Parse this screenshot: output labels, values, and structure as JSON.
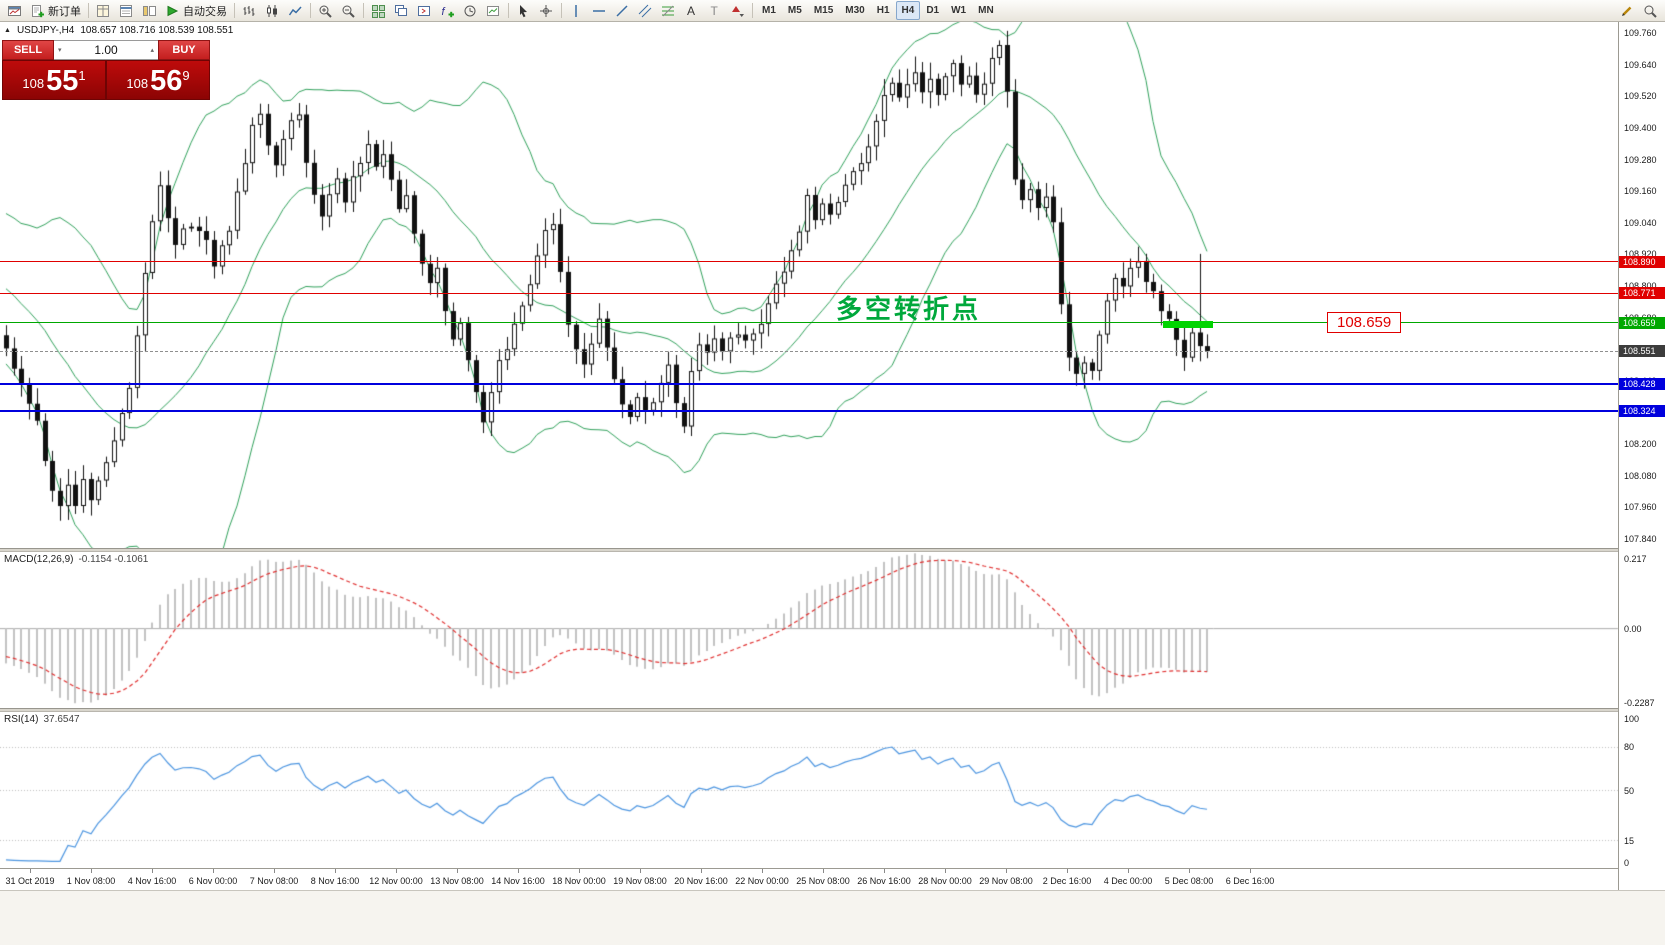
{
  "toolbar": {
    "items": [
      {
        "name": "chart-window",
        "type": "icon",
        "icon": "chart-window-icon"
      },
      {
        "name": "new-order-button",
        "type": "labeled",
        "icon": "new-order-icon",
        "label": "新订单"
      },
      {
        "type": "sep"
      },
      {
        "name": "market-watch",
        "type": "icon",
        "icon": "market-watch-icon"
      },
      {
        "name": "data-window",
        "type": "icon",
        "icon": "data-window-icon"
      },
      {
        "name": "navigator",
        "type": "icon",
        "icon": "navigator-icon"
      },
      {
        "name": "autotrade-button",
        "type": "labeled",
        "icon": "autotrade-play-icon",
        "label": "自动交易"
      },
      {
        "type": "sep"
      },
      {
        "name": "bar-chart",
        "type": "icon",
        "icon": "bar-chart-icon"
      },
      {
        "name": "candlestick-chart",
        "type": "icon",
        "icon": "candlestick-chart-icon"
      },
      {
        "name": "line-chart",
        "type": "icon",
        "icon": "line-chart-icon"
      },
      {
        "type": "sep"
      },
      {
        "name": "zoom-in",
        "type": "icon",
        "icon": "zoom-in-icon"
      },
      {
        "name": "zoom-out",
        "type": "icon",
        "icon": "zoom-out-icon"
      },
      {
        "type": "sep"
      },
      {
        "name": "tile-windows",
        "type": "icon",
        "icon": "tile-windows-icon"
      },
      {
        "name": "cascade-windows",
        "type": "icon",
        "icon": "cascade-windows-icon"
      },
      {
        "name": "arrange-windows",
        "type": "icon",
        "icon": "arrange-windows-icon"
      },
      {
        "name": "indicators",
        "type": "icon",
        "icon": "indicators-icon"
      },
      {
        "name": "periods",
        "type": "icon",
        "icon": "periods-icon"
      },
      {
        "name": "templates",
        "type": "icon",
        "icon": "templates-icon"
      },
      {
        "type": "sep"
      },
      {
        "name": "cursor",
        "type": "icon",
        "icon": "cursor-icon"
      },
      {
        "name": "crosshair",
        "type": "icon",
        "icon": "crosshair-icon"
      },
      {
        "type": "sep"
      },
      {
        "name": "vertical-line",
        "type": "icon",
        "icon": "vertical-line-icon"
      },
      {
        "name": "horizontal-line",
        "type": "icon",
        "icon": "horizontal-line-icon"
      },
      {
        "name": "trendline",
        "type": "icon",
        "icon": "trendline-icon"
      },
      {
        "name": "equidistant-channel",
        "type": "icon",
        "icon": "equidistant-channel-icon"
      },
      {
        "name": "fibonacci",
        "type": "icon",
        "icon": "fibonacci-icon"
      },
      {
        "name": "text-tool",
        "type": "icon",
        "icon": "text-icon"
      },
      {
        "name": "label-tool",
        "type": "icon",
        "icon": "label-icon"
      },
      {
        "name": "arrows-tool",
        "type": "icon",
        "icon": "arrows-icon"
      },
      {
        "type": "sep"
      }
    ],
    "timeframes": [
      "M1",
      "M5",
      "M15",
      "M30",
      "H1",
      "H4",
      "D1",
      "W1",
      "MN"
    ],
    "active_timeframe": "H4",
    "right_items": [
      {
        "name": "pencil-tool",
        "type": "icon",
        "icon": "pencil-icon"
      },
      {
        "name": "quick-search",
        "type": "icon",
        "icon": "search-icon"
      }
    ]
  },
  "chart_header": {
    "collapse_icon": "▲",
    "title": "USDJPY-,H4",
    "ohlc": "108.657 108.716 108.539 108.551"
  },
  "trade_panel": {
    "sell_label": "SELL",
    "buy_label": "BUY",
    "volume": "1.00",
    "vol_down_icon": "▾",
    "vol_up_icon": "▴",
    "sell_price": {
      "prefix": "108",
      "big": "55",
      "pip": "1"
    },
    "buy_price": {
      "prefix": "108",
      "big": "56",
      "pip": "9"
    }
  },
  "annotations": {
    "turning_point_text": {
      "text": "多空转折点",
      "color": "#00A83C"
    },
    "price_callout": {
      "text": "108.659",
      "color": "#DD0000"
    },
    "highlight_bar": {
      "color": "#00D400",
      "price": 108.659
    }
  },
  "levels": [
    {
      "label": "108.890",
      "price": 108.89,
      "color": "#E00000",
      "thickness": 1
    },
    {
      "label": "108.771",
      "price": 108.771,
      "color": "#E00000",
      "thickness": 1
    },
    {
      "label": "108.659",
      "price": 108.659,
      "color": "#00A800",
      "thickness": 1
    },
    {
      "label": "108.428",
      "price": 108.428,
      "color": "#0000DD",
      "thickness": 2
    },
    {
      "label": "108.324",
      "price": 108.324,
      "color": "#0000DD",
      "thickness": 2
    }
  ],
  "current_price": {
    "label": "108.551",
    "price": 108.551,
    "tag_color": "#3C3C3C"
  },
  "axis": {
    "max": 109.8,
    "min": 107.8,
    "ticks": [
      "109.760",
      "109.640",
      "109.520",
      "109.400",
      "109.280",
      "109.160",
      "109.040",
      "108.920",
      "108.800",
      "108.680",
      "108.560",
      "108.440",
      "108.320",
      "108.200",
      "108.080",
      "107.960",
      "107.840"
    ]
  },
  "macd": {
    "label": "MACD(12,26,9)",
    "values": "-0.1154 -0.1061",
    "ticks": [
      {
        "label": "0.217",
        "value": 0.217
      },
      {
        "label": "0.00",
        "value": 0
      },
      {
        "label": "-0.2287",
        "value": -0.2287
      }
    ],
    "histogram_color": "#C2C2C2",
    "signal_color": "#E03030"
  },
  "rsi": {
    "label": "RSI(14)",
    "value": "37.6547",
    "ticks": [
      {
        "label": "100",
        "value": 100
      },
      {
        "label": "80",
        "value": 80
      },
      {
        "label": "50",
        "value": 50
      },
      {
        "label": "15",
        "value": 15
      },
      {
        "label": "0",
        "value": 0
      }
    ],
    "level_lines": [
      80,
      50,
      15
    ],
    "line_color": "#4C95E0"
  },
  "time_axis": {
    "labels": [
      "31 Oct 2019",
      "1 Nov 08:00",
      "4 Nov 16:00",
      "6 Nov 00:00",
      "7 Nov 08:00",
      "8 Nov 16:00",
      "12 Nov 00:00",
      "13 Nov 08:00",
      "14 Nov 16:00",
      "18 Nov 00:00",
      "19 Nov 08:00",
      "20 Nov 16:00",
      "22 Nov 00:00",
      "25 Nov 08:00",
      "26 Nov 16:00",
      "28 Nov 00:00",
      "29 Nov 08:00",
      "2 Dec 16:00",
      "4 Dec 00:00",
      "5 Dec 08:00",
      "6 Dec 16:00"
    ]
  },
  "chart_data": {
    "type": "candlestick",
    "symbol": "USDJPY",
    "timeframe": "H4",
    "visible_range": {
      "price_min": 107.8,
      "price_max": 109.8,
      "time_start": "31 Oct 2019",
      "time_end": "6 Dec 16:00"
    },
    "candle_count": 157,
    "last_close": 108.551,
    "up_color": "#FFFFFF",
    "down_color": "#111111",
    "wick_color": "#111111",
    "overlays": {
      "bollinger_bands": {
        "period": 20,
        "deviation": 2,
        "color": "#2FA05A"
      }
    },
    "price_path": [
      [
        0,
        108.55
      ],
      [
        2,
        108.44
      ],
      [
        4,
        108.28
      ],
      [
        5,
        108.15
      ],
      [
        6,
        108.02
      ],
      [
        7,
        107.96
      ],
      [
        8,
        108.04
      ],
      [
        9,
        107.95
      ],
      [
        10,
        108.05
      ],
      [
        11,
        107.97
      ],
      [
        12,
        108.06
      ],
      [
        13,
        108.12
      ],
      [
        14,
        108.22
      ],
      [
        16,
        108.42
      ],
      [
        17,
        108.6
      ],
      [
        18,
        108.85
      ],
      [
        19,
        109.06
      ],
      [
        20,
        109.17
      ],
      [
        21,
        109.07
      ],
      [
        22,
        108.96
      ],
      [
        24,
        109.04
      ],
      [
        26,
        108.96
      ],
      [
        27,
        108.88
      ],
      [
        29,
        109.0
      ],
      [
        31,
        109.28
      ],
      [
        32,
        109.42
      ],
      [
        33,
        109.46
      ],
      [
        34,
        109.33
      ],
      [
        35,
        109.26
      ],
      [
        36,
        109.34
      ],
      [
        37,
        109.43
      ],
      [
        38,
        109.45
      ],
      [
        39,
        109.27
      ],
      [
        40,
        109.16
      ],
      [
        41,
        109.07
      ],
      [
        42,
        109.14
      ],
      [
        43,
        109.22
      ],
      [
        44,
        109.12
      ],
      [
        45,
        109.2
      ],
      [
        46,
        109.28
      ],
      [
        47,
        109.33
      ],
      [
        48,
        109.24
      ],
      [
        49,
        109.3
      ],
      [
        50,
        109.2
      ],
      [
        51,
        109.1
      ],
      [
        52,
        109.15
      ],
      [
        53,
        108.98
      ],
      [
        54,
        108.9
      ],
      [
        55,
        108.8
      ],
      [
        56,
        108.86
      ],
      [
        57,
        108.7
      ],
      [
        58,
        108.6
      ],
      [
        59,
        108.66
      ],
      [
        60,
        108.5
      ],
      [
        61,
        108.4
      ],
      [
        62,
        108.28
      ],
      [
        63,
        108.4
      ],
      [
        64,
        108.5
      ],
      [
        65,
        108.56
      ],
      [
        66,
        108.66
      ],
      [
        67,
        108.72
      ],
      [
        68,
        108.8
      ],
      [
        69,
        108.9
      ],
      [
        70,
        109.0
      ],
      [
        71,
        109.04
      ],
      [
        72,
        108.84
      ],
      [
        73,
        108.64
      ],
      [
        74,
        108.55
      ],
      [
        75,
        108.5
      ],
      [
        76,
        108.58
      ],
      [
        77,
        108.68
      ],
      [
        78,
        108.58
      ],
      [
        79,
        108.45
      ],
      [
        80,
        108.35
      ],
      [
        81,
        108.3
      ],
      [
        82,
        108.37
      ],
      [
        83,
        108.31
      ],
      [
        84,
        108.35
      ],
      [
        85,
        108.43
      ],
      [
        86,
        108.5
      ],
      [
        87,
        108.36
      ],
      [
        88,
        108.28
      ],
      [
        89,
        108.48
      ],
      [
        90,
        108.58
      ],
      [
        91,
        108.54
      ],
      [
        92,
        108.6
      ],
      [
        93,
        108.56
      ],
      [
        94,
        108.61
      ],
      [
        95,
        108.63
      ],
      [
        96,
        108.58
      ],
      [
        97,
        108.63
      ],
      [
        98,
        108.67
      ],
      [
        99,
        108.73
      ],
      [
        100,
        108.79
      ],
      [
        101,
        108.86
      ],
      [
        102,
        108.93
      ],
      [
        103,
        109.01
      ],
      [
        104,
        109.13
      ],
      [
        105,
        109.04
      ],
      [
        106,
        109.1
      ],
      [
        107,
        109.07
      ],
      [
        108,
        109.12
      ],
      [
        109,
        109.18
      ],
      [
        110,
        109.23
      ],
      [
        111,
        109.28
      ],
      [
        112,
        109.33
      ],
      [
        113,
        109.41
      ],
      [
        114,
        109.51
      ],
      [
        115,
        109.58
      ],
      [
        116,
        109.5
      ],
      [
        117,
        109.55
      ],
      [
        118,
        109.61
      ],
      [
        119,
        109.55
      ],
      [
        120,
        109.58
      ],
      [
        121,
        109.52
      ],
      [
        122,
        109.6
      ],
      [
        123,
        109.64
      ],
      [
        124,
        109.56
      ],
      [
        125,
        109.61
      ],
      [
        126,
        109.53
      ],
      [
        127,
        109.58
      ],
      [
        128,
        109.66
      ],
      [
        129,
        109.71
      ],
      [
        130,
        109.54
      ],
      [
        131,
        109.2
      ],
      [
        132,
        109.12
      ],
      [
        133,
        109.18
      ],
      [
        134,
        109.1
      ],
      [
        135,
        109.15
      ],
      [
        136,
        109.04
      ],
      [
        137,
        108.72
      ],
      [
        138,
        108.54
      ],
      [
        139,
        108.45
      ],
      [
        140,
        108.52
      ],
      [
        141,
        108.47
      ],
      [
        142,
        108.61
      ],
      [
        143,
        108.76
      ],
      [
        144,
        108.83
      ],
      [
        145,
        108.78
      ],
      [
        146,
        108.86
      ],
      [
        147,
        108.89
      ],
      [
        148,
        108.82
      ],
      [
        149,
        108.77
      ],
      [
        150,
        108.71
      ],
      [
        151,
        108.67
      ],
      [
        152,
        108.59
      ],
      [
        153,
        108.54
      ],
      [
        154,
        108.63
      ],
      [
        155,
        108.57
      ],
      [
        156,
        108.551
      ]
    ],
    "spikes": [
      {
        "i": 8,
        "low": 107.92
      },
      {
        "i": 33,
        "high": 109.49
      },
      {
        "i": 62,
        "low": 108.24
      },
      {
        "i": 88,
        "low": 108.24
      },
      {
        "i": 129,
        "high": 109.73
      },
      {
        "i": 139,
        "low": 108.42
      },
      {
        "i": 155,
        "high": 108.92
      }
    ]
  }
}
